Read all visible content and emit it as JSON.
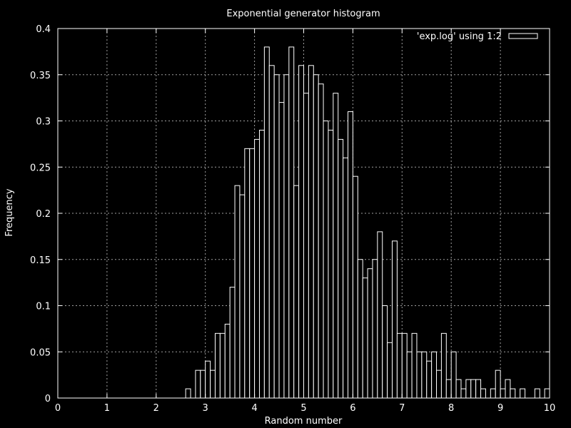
{
  "chart_data": {
    "type": "bar",
    "style": "histogram-steps",
    "title": "Exponential generator histogram",
    "xlabel": "Random number",
    "ylabel": "Frequency",
    "xlim": [
      0,
      10
    ],
    "ylim": [
      0,
      0.4
    ],
    "x_ticks": [
      "0",
      "1",
      "2",
      "3",
      "4",
      "5",
      "6",
      "7",
      "8",
      "9",
      "10"
    ],
    "y_ticks": [
      "0",
      "0.05",
      "0.1",
      "0.15",
      "0.2",
      "0.25",
      "0.3",
      "0.35",
      "0.4"
    ],
    "grid": true,
    "legend": {
      "position": "top-right",
      "label": "'exp.log' using 1:2"
    },
    "bin_width": 0.1,
    "bin_starts": [
      2.6,
      2.8,
      2.9,
      3.0,
      3.1,
      3.2,
      3.3,
      3.4,
      3.5,
      3.6,
      3.7,
      3.8,
      3.9,
      4.0,
      4.1,
      4.2,
      4.3,
      4.4,
      4.5,
      4.6,
      4.7,
      4.8,
      4.9,
      5.0,
      5.1,
      5.2,
      5.3,
      5.4,
      5.5,
      5.6,
      5.7,
      5.8,
      5.9,
      6.0,
      6.1,
      6.2,
      6.3,
      6.4,
      6.5,
      6.6,
      6.7,
      6.8,
      6.9,
      7.0,
      7.1,
      7.2,
      7.3,
      7.4,
      7.5,
      7.6,
      7.7,
      7.8,
      7.9,
      8.0,
      8.1,
      8.2,
      8.3,
      8.4,
      8.5,
      8.6,
      8.8,
      8.9,
      9.0,
      9.1,
      9.2,
      9.4,
      9.7,
      9.9
    ],
    "values": [
      0.01,
      0.03,
      0.03,
      0.04,
      0.03,
      0.07,
      0.07,
      0.08,
      0.12,
      0.23,
      0.22,
      0.27,
      0.27,
      0.28,
      0.29,
      0.38,
      0.36,
      0.35,
      0.32,
      0.35,
      0.38,
      0.23,
      0.36,
      0.33,
      0.36,
      0.35,
      0.34,
      0.3,
      0.29,
      0.33,
      0.28,
      0.26,
      0.31,
      0.24,
      0.15,
      0.13,
      0.14,
      0.15,
      0.18,
      0.1,
      0.06,
      0.17,
      0.07,
      0.07,
      0.05,
      0.07,
      0.05,
      0.05,
      0.04,
      0.05,
      0.03,
      0.07,
      0.02,
      0.05,
      0.02,
      0.01,
      0.02,
      0.02,
      0.02,
      0.01,
      0.01,
      0.03,
      0.01,
      0.02,
      0.01,
      0.01,
      0.01,
      0.01
    ],
    "colors": {
      "background": "#000000",
      "foreground": "#ffffff",
      "grid": "#a0a0a0"
    }
  }
}
